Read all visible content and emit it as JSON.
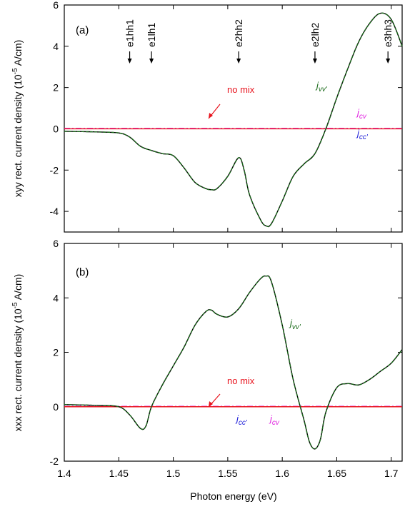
{
  "chart_data": [
    {
      "type": "line",
      "panel_label": "(a)",
      "ylabel": "xyy rect. current density (10",
      "ylabel_sup": "-5",
      "ylabel_tail": " A/cm)",
      "xlim": [
        1.4,
        1.71
      ],
      "ylim": [
        -5,
        6
      ],
      "yticks": [
        "-4",
        "-2",
        "0",
        "2",
        "4",
        "6"
      ],
      "ytick_values": [
        -4,
        -2,
        0,
        2,
        4,
        6
      ],
      "transitions": [
        {
          "label": "e1hh1",
          "x": 1.46
        },
        {
          "label": "e1lh1",
          "x": 1.48
        },
        {
          "label": "e2hh2",
          "x": 1.56
        },
        {
          "label": "e2lh2",
          "x": 1.63
        },
        {
          "label": "e3hh3",
          "x": 1.697
        }
      ],
      "annotations": {
        "no_mix": "no mix",
        "jvv_base": "j",
        "jvv_sub": "vv'",
        "jcv_base": "j",
        "jcv_sub": "cv",
        "jcc_base": "j",
        "jcc_sub": "cc'"
      },
      "colors": {
        "jvv": "#1a6b1a",
        "no_mix": "#e8141e",
        "jcv": "#e020e0",
        "jcc": "#1c1cd8",
        "total": "#000000"
      },
      "series": [
        {
          "x": [
            1.4,
            1.43,
            1.45,
            1.46,
            1.47,
            1.48,
            1.49,
            1.5,
            1.51,
            1.52,
            1.53,
            1.535,
            1.54,
            1.55,
            1.56,
            1.565,
            1.57,
            1.58,
            1.585,
            1.59,
            1.6,
            1.61,
            1.62,
            1.63,
            1.64,
            1.65,
            1.66,
            1.67,
            1.68,
            1.69,
            1.7,
            1.71
          ],
          "values": [
            -0.12,
            -0.15,
            -0.2,
            -0.4,
            -0.85,
            -1.05,
            -1.2,
            -1.3,
            -1.9,
            -2.6,
            -2.9,
            -2.95,
            -2.9,
            -2.3,
            -1.4,
            -2.0,
            -3.2,
            -4.4,
            -4.7,
            -4.6,
            -3.5,
            -2.3,
            -1.7,
            -1.2,
            0.0,
            1.5,
            2.9,
            4.2,
            5.1,
            5.6,
            5.3,
            4.0
          ]
        }
      ]
    },
    {
      "type": "line",
      "panel_label": "(b)",
      "ylabel": "xxx rect. current density (10",
      "ylabel_sup": "-5",
      "ylabel_tail": " A/cm)",
      "xlabel": "Photon energy (eV)",
      "xlim": [
        1.4,
        1.71
      ],
      "ylim": [
        -2,
        6
      ],
      "yticks": [
        "-2",
        "0",
        "2",
        "4",
        "6"
      ],
      "ytick_values": [
        -2,
        0,
        2,
        4,
        6
      ],
      "xticks": [
        "1.4",
        "1.45",
        "1.5",
        "1.55",
        "1.6",
        "1.65",
        "1.7"
      ],
      "xtick_values": [
        1.4,
        1.45,
        1.5,
        1.55,
        1.6,
        1.65,
        1.7
      ],
      "annotations": {
        "no_mix": "no mix",
        "jvv_base": "j",
        "jvv_sub": "vv'",
        "jcv_base": "j",
        "jcv_sub": "cv",
        "jcc_base": "j",
        "jcc_sub": "cc'"
      },
      "series": [
        {
          "x": [
            1.4,
            1.43,
            1.45,
            1.46,
            1.47,
            1.475,
            1.48,
            1.49,
            1.5,
            1.51,
            1.52,
            1.53,
            1.535,
            1.54,
            1.55,
            1.56,
            1.57,
            1.58,
            1.585,
            1.59,
            1.6,
            1.61,
            1.62,
            1.625,
            1.63,
            1.635,
            1.64,
            1.65,
            1.66,
            1.67,
            1.68,
            1.69,
            1.7,
            1.71
          ],
          "values": [
            0.08,
            0.05,
            0.0,
            -0.3,
            -0.8,
            -0.7,
            0.0,
            0.8,
            1.5,
            2.2,
            3.0,
            3.5,
            3.55,
            3.4,
            3.3,
            3.6,
            4.2,
            4.7,
            4.8,
            4.6,
            3.0,
            1.0,
            -0.5,
            -1.3,
            -1.55,
            -1.2,
            -0.2,
            0.7,
            0.85,
            0.8,
            1.0,
            1.3,
            1.6,
            2.1
          ]
        }
      ]
    }
  ]
}
